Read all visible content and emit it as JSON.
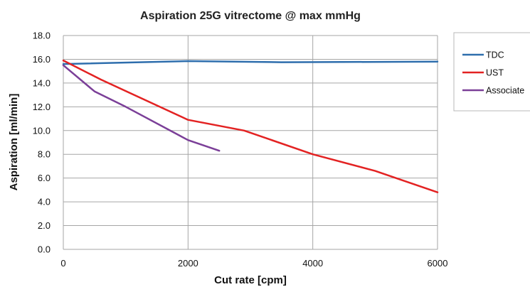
{
  "chart_data": {
    "type": "line",
    "title": "Aspiration 25G vitrectome @ max mmHg",
    "xlabel": "Cut rate [cpm]",
    "ylabel": "Aspiration [ml/min]",
    "xlim": [
      0,
      6000
    ],
    "ylim": [
      0,
      18
    ],
    "x_ticks": [
      "0",
      "2000",
      "4000",
      "6000"
    ],
    "y_ticks": [
      "0.0",
      "2.0",
      "4.0",
      "6.0",
      "8.0",
      "10.0",
      "12.0",
      "14.0",
      "16.0",
      "18.0"
    ],
    "grid": true,
    "legend_position": "right",
    "series": [
      {
        "name": "TDC",
        "color": "#2e6ead",
        "x": [
          0,
          2000,
          3500,
          6000
        ],
        "y": [
          15.6,
          15.85,
          15.75,
          15.8
        ]
      },
      {
        "name": "UST",
        "color": "#e32222",
        "x": [
          0,
          600,
          2000,
          2900,
          4000,
          5000,
          6000
        ],
        "y": [
          15.9,
          14.3,
          10.9,
          10.0,
          8.0,
          6.6,
          4.8
        ]
      },
      {
        "name": "Associate",
        "color": "#7b3f98",
        "x": [
          0,
          500,
          1000,
          2000,
          2500
        ],
        "y": [
          15.5,
          13.3,
          12.0,
          9.2,
          8.3
        ]
      }
    ]
  }
}
